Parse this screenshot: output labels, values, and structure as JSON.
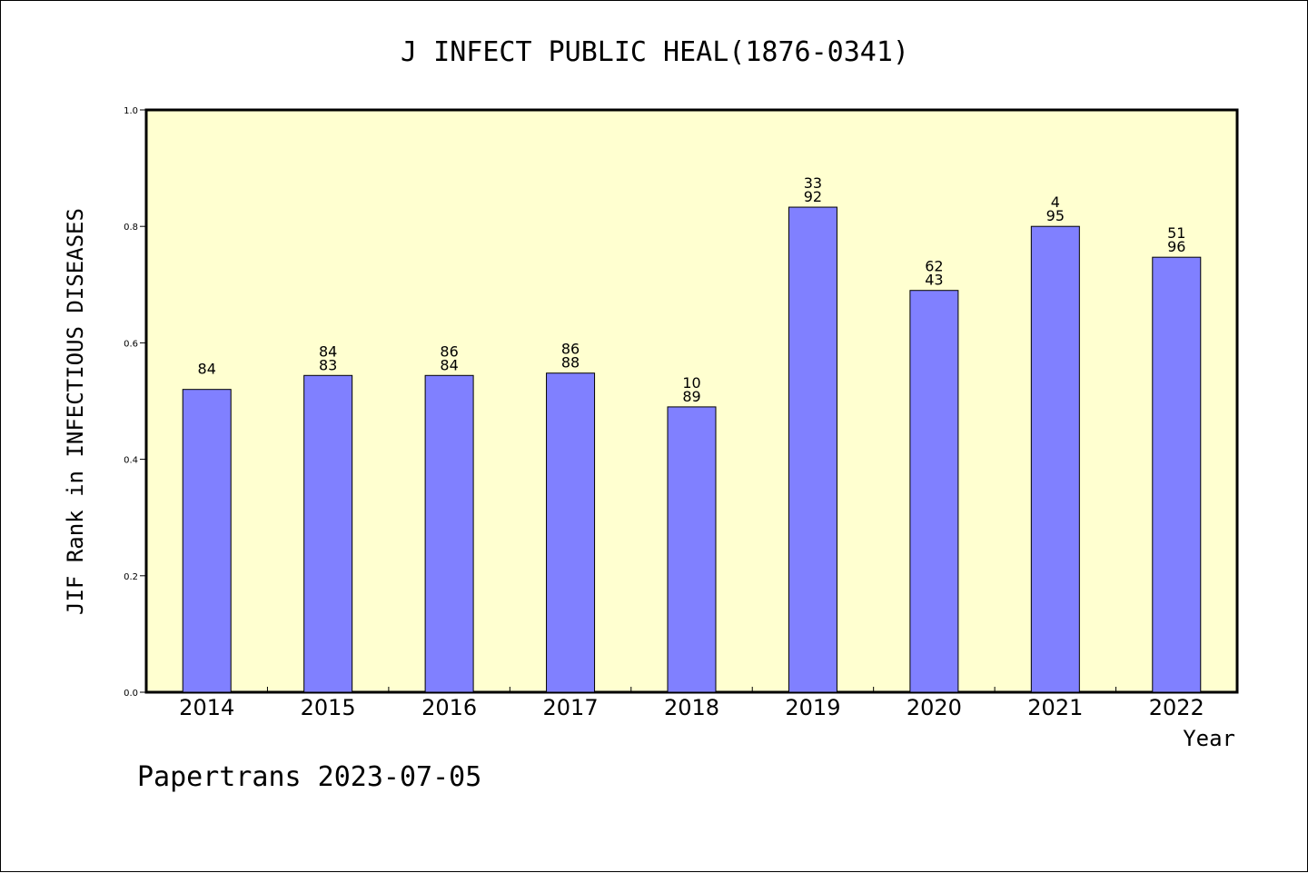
{
  "chart_data": {
    "type": "bar",
    "title": "J INFECT PUBLIC HEAL(1876-0341)",
    "xlabel": "Year",
    "ylabel": "JIF Rank in INFECTIOUS DISEASES",
    "categories": [
      "2014",
      "2015",
      "2016",
      "2017",
      "2018",
      "2019",
      "2020",
      "2021",
      "2022"
    ],
    "values": [
      0.52,
      0.544,
      0.544,
      0.548,
      0.49,
      0.833,
      0.69,
      0.8,
      0.747
    ],
    "data_labels": [
      [
        "84"
      ],
      [
        "84",
        "83"
      ],
      [
        "86",
        "84"
      ],
      [
        "86",
        "88"
      ],
      [
        "10",
        "89"
      ],
      [
        "33",
        "92"
      ],
      [
        "62",
        "43"
      ],
      [
        "4",
        "95"
      ],
      [
        "51",
        "96"
      ]
    ],
    "ylim": [
      0,
      1.0
    ],
    "yticks": [
      "0.0",
      "0.2",
      "0.4",
      "0.6",
      "0.8",
      "1.0"
    ],
    "grid": false,
    "legend": "none"
  },
  "colors": {
    "plot_background": "#ffffd0",
    "bar_fill": "#8080ff",
    "bar_stroke": "#000000"
  },
  "footer": "Papertrans 2023-07-05"
}
